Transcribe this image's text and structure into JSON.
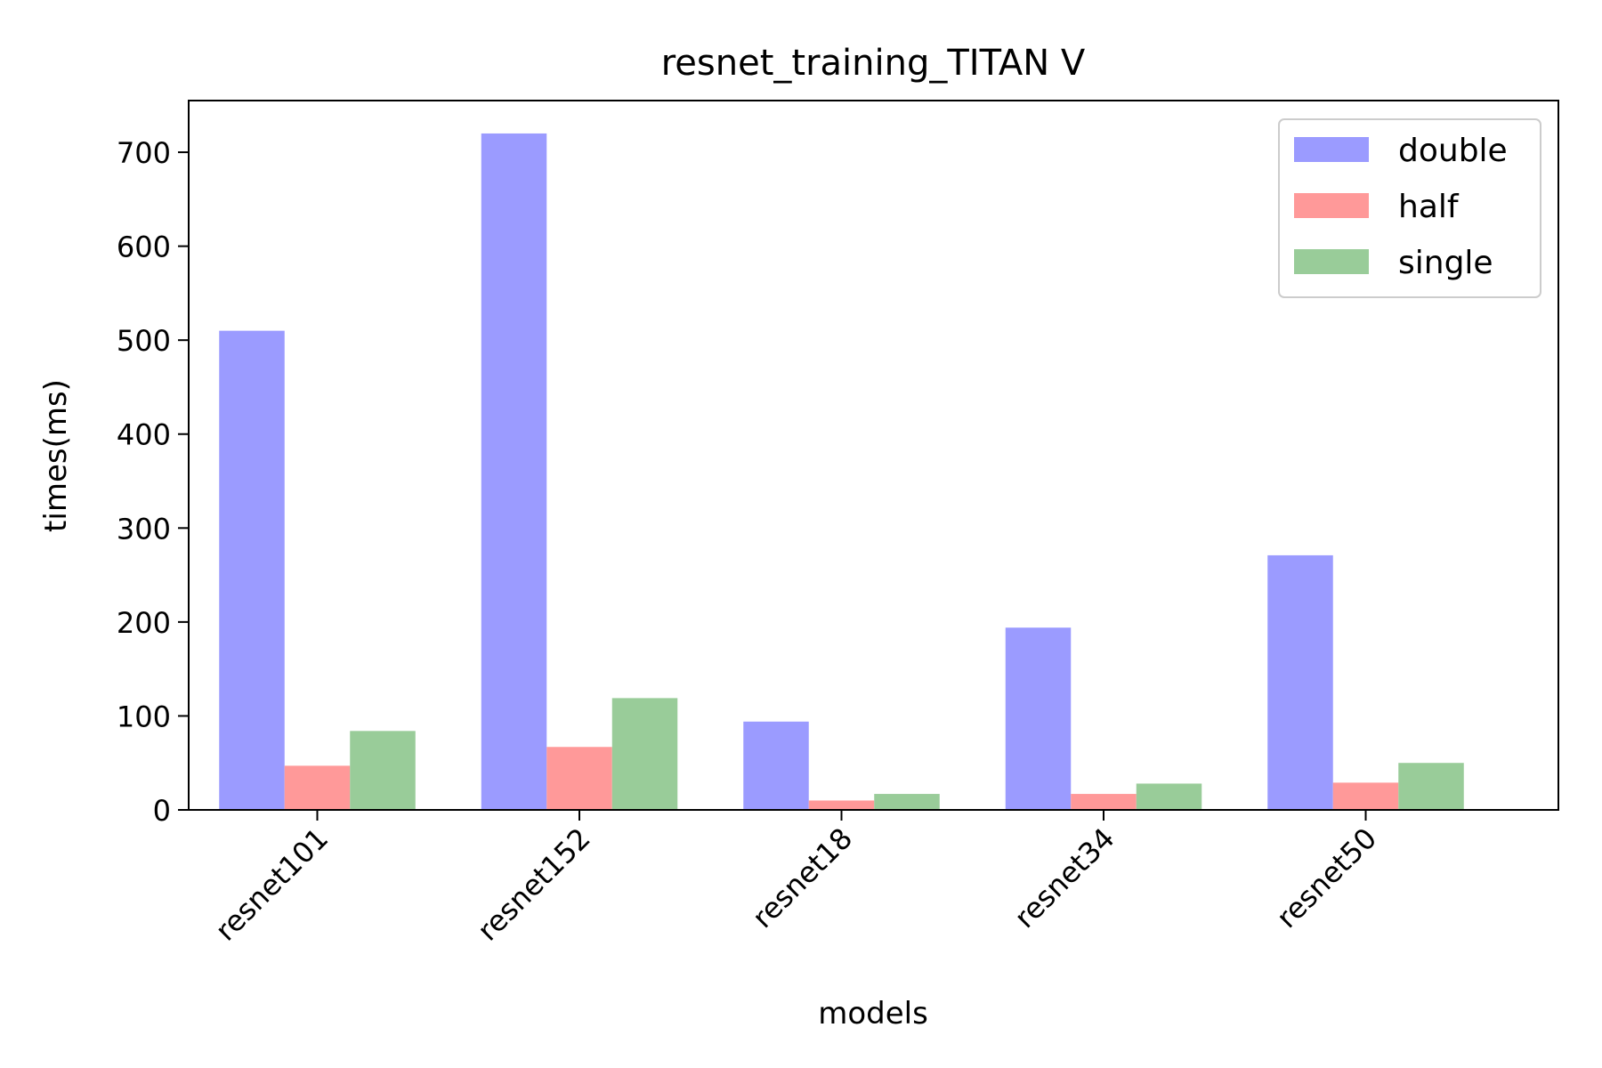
{
  "chart_data": {
    "type": "bar",
    "title": "resnet_training_TITAN V",
    "xlabel": "models",
    "ylabel": "times(ms)",
    "categories": [
      "resnet101",
      "resnet152",
      "resnet18",
      "resnet34",
      "resnet50"
    ],
    "ylim": [
      0,
      755
    ],
    "yticks": [
      0,
      100,
      200,
      300,
      400,
      500,
      600,
      700
    ],
    "legend_position": "top-right",
    "grid": false,
    "series": [
      {
        "name": "double",
        "color": "#9b9bff",
        "values": [
          510,
          720,
          94,
          194,
          271
        ]
      },
      {
        "name": "half",
        "color": "#ff9999",
        "values": [
          47,
          67,
          10,
          17,
          29
        ]
      },
      {
        "name": "single",
        "color": "#99cc99",
        "values": [
          84,
          119,
          17,
          28,
          50
        ]
      }
    ]
  }
}
